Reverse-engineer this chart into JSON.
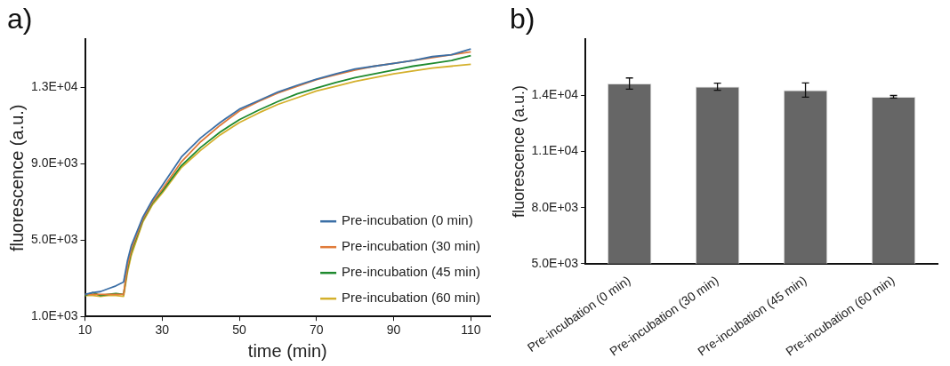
{
  "chart_data": [
    {
      "type": "line",
      "title": "a)",
      "xlabel": "time (min)",
      "ylabel": "fluorescence (a.u.)",
      "x": [
        10,
        12,
        14,
        16,
        18,
        20,
        21,
        22,
        25,
        27.5,
        30,
        35,
        40,
        45,
        50,
        55,
        60,
        65,
        70,
        75,
        80,
        85,
        90,
        95,
        100,
        105,
        110
      ],
      "series": [
        {
          "name": "Pre-incubation (0 min)",
          "color": "#3b6fa6",
          "values": [
            2150,
            2250,
            2300,
            2450,
            2600,
            2800,
            3900,
            4700,
            6200,
            7100,
            7850,
            9350,
            10350,
            11150,
            11850,
            12300,
            12750,
            13100,
            13420,
            13700,
            13950,
            14100,
            14250,
            14400,
            14600,
            14700,
            15000
          ]
        },
        {
          "name": "Pre-incubation (30 min)",
          "color": "#e07b39",
          "values": [
            2150,
            2150,
            2150,
            2150,
            2150,
            2150,
            3600,
            4500,
            6100,
            7000,
            7650,
            9100,
            10150,
            11000,
            11750,
            12250,
            12700,
            13050,
            13400,
            13650,
            13900,
            14100,
            14250,
            14400,
            14550,
            14700,
            14850
          ]
        },
        {
          "name": "Pre-incubation (45 min)",
          "color": "#1f8a2f",
          "values": [
            2100,
            2250,
            2100,
            2150,
            2200,
            2150,
            3500,
            4400,
            6050,
            6950,
            7550,
            8900,
            9850,
            10650,
            11300,
            11800,
            12250,
            12650,
            12950,
            13250,
            13500,
            13700,
            13900,
            14100,
            14250,
            14400,
            14650
          ]
        },
        {
          "name": "Pre-incubation (60 min)",
          "color": "#d4b02c",
          "values": [
            2100,
            2100,
            2050,
            2100,
            2100,
            2050,
            3300,
            4200,
            5950,
            6850,
            7450,
            8800,
            9700,
            10500,
            11150,
            11650,
            12100,
            12450,
            12800,
            13050,
            13300,
            13500,
            13700,
            13850,
            14000,
            14100,
            14200
          ]
        }
      ],
      "xlim": [
        10,
        115
      ],
      "xticks": [
        10,
        30,
        50,
        70,
        90,
        110
      ],
      "ylim": [
        1000,
        15500
      ],
      "yticks": [
        {
          "value": 1000,
          "label": "1.0E+03"
        },
        {
          "value": 5000,
          "label": "5.0E+03"
        },
        {
          "value": 9000,
          "label": "9.0E+03"
        },
        {
          "value": 13000,
          "label": "1.3E+04"
        }
      ],
      "grid": false,
      "legend": "bottom right",
      "marker": "none",
      "line_style": "solid"
    },
    {
      "type": "bar",
      "title": "b)",
      "ylabel": "fluorescence (a.u.)",
      "categories": [
        "Pre-incubation (0 min)",
        "Pre-incubation (30 min)",
        "Pre-incubation (45 min)",
        "Pre-incubation (60 min)"
      ],
      "values": [
        14640,
        14470,
        14290,
        13930
      ],
      "errors": [
        300,
        190,
        380,
        70
      ],
      "color": "#666666",
      "ylim": [
        5000,
        17000
      ],
      "yticks": [
        {
          "value": 5000,
          "label": "5.0E+03"
        },
        {
          "value": 8000,
          "label": "8.0E+03"
        },
        {
          "value": 11000,
          "label": "1.1E+04"
        },
        {
          "value": 14000,
          "label": "1.4E+04"
        }
      ],
      "grid": false,
      "legend": false
    }
  ]
}
